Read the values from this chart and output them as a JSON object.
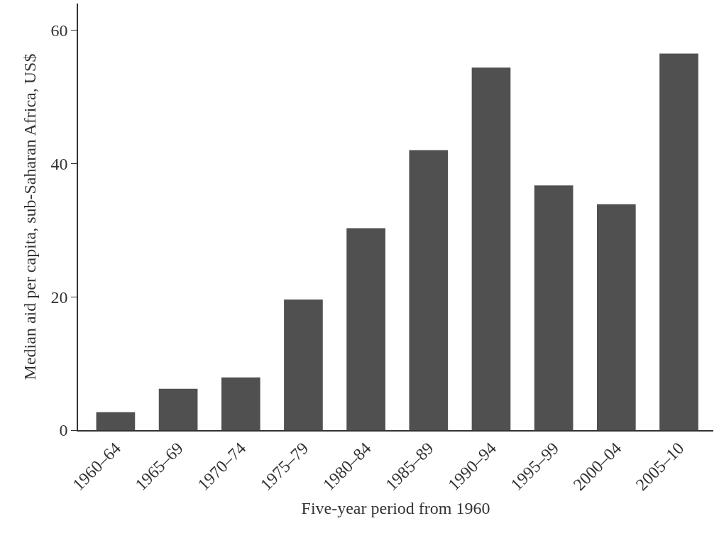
{
  "chart_data": {
    "type": "bar",
    "xlabel": "Five-year period from 1960",
    "ylabel": "Median aid per capita, sub-Saharan Africa, US$",
    "categories": [
      "1960–64",
      "1965–69",
      "1970–74",
      "1975–79",
      "1980–84",
      "1985–89",
      "1990–94",
      "1995–99",
      "2000–04",
      "2005–10"
    ],
    "values": [
      2.7,
      6.2,
      7.9,
      19.6,
      30.3,
      42.0,
      54.4,
      36.7,
      33.9,
      56.5
    ],
    "color": "#505050",
    "ylim": [
      0,
      64
    ],
    "yticks": [
      0,
      20,
      40,
      60
    ],
    "grid": false
  }
}
